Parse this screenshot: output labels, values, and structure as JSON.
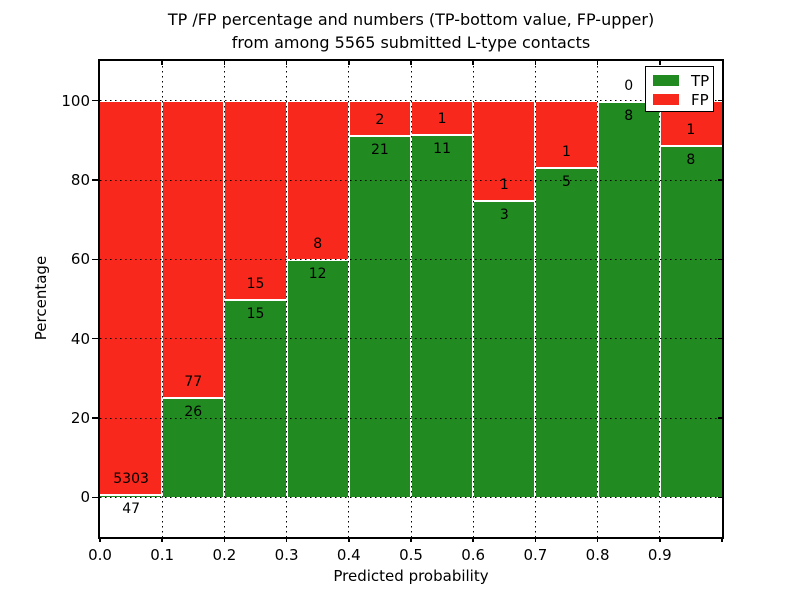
{
  "figure": {
    "title_line1": "TP /FP percentage and numbers (TP-bottom value, FP-upper)",
    "title_line2": "from among 5565 submitted L-type contacts"
  },
  "chart_data": {
    "type": "bar",
    "subtype": "stacked-percentage-histogram",
    "title": "TP /FP percentage and numbers (TP-bottom value, FP-upper) from among 5565 submitted L-type contacts",
    "xlabel": "Predicted probability",
    "ylabel": "Percentage",
    "xlim": [
      0.0,
      1.0
    ],
    "ylim": [
      -10,
      110
    ],
    "bin_width": 0.1,
    "grid": "dotted",
    "categories": [
      "0.0-0.1",
      "0.1-0.2",
      "0.2-0.3",
      "0.3-0.4",
      "0.4-0.5",
      "0.5-0.6",
      "0.6-0.7",
      "0.7-0.8",
      "0.8-0.9",
      "0.9-1.0"
    ],
    "x_tick_labels": [
      "0.0",
      "0.1",
      "0.2",
      "0.3",
      "0.4",
      "0.5",
      "0.6",
      "0.7",
      "0.8",
      "0.9"
    ],
    "y_ticks": [
      0,
      20,
      40,
      60,
      80,
      100
    ],
    "series": [
      {
        "name": "TP",
        "color": "#218a21",
        "counts": [
          47,
          26,
          15,
          12,
          21,
          11,
          3,
          5,
          8,
          8
        ]
      },
      {
        "name": "FP",
        "color": "#f8281c",
        "counts": [
          5303,
          77,
          15,
          8,
          2,
          1,
          1,
          1,
          0,
          1
        ]
      }
    ],
    "tp_percent": [
      0.88,
      25.24,
      50.0,
      60.0,
      91.3,
      91.67,
      75.0,
      83.33,
      100.0,
      88.89
    ],
    "total_contacts": 5565,
    "legend": {
      "position": "upper right",
      "entries": [
        {
          "label": "TP",
          "color": "#218a21"
        },
        {
          "label": "FP",
          "color": "#f8281c"
        }
      ]
    }
  }
}
